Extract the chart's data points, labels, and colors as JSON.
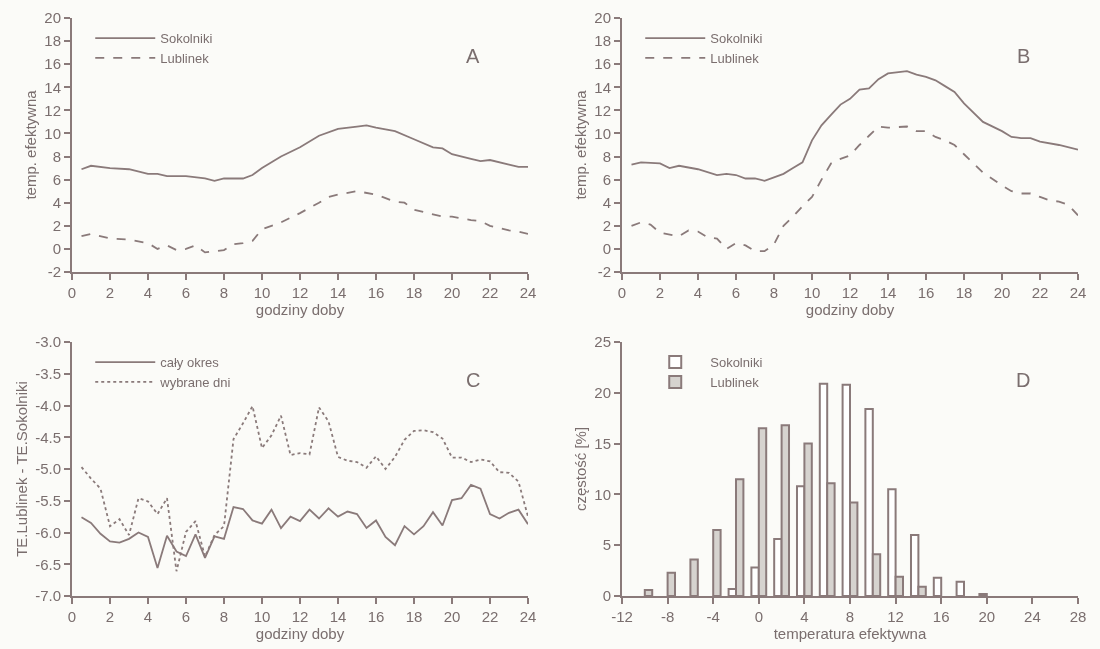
{
  "chart_data": [
    {
      "type": "line",
      "xlabel": "godziny doby",
      "ylabel": "temp. efektywna",
      "annotations": [
        "A"
      ],
      "legend": "top left",
      "xlim": [
        0,
        24
      ],
      "xticks": [
        0,
        2,
        4,
        6,
        8,
        10,
        12,
        14,
        16,
        18,
        20,
        22,
        24
      ],
      "ylim": [
        -2,
        20
      ],
      "yticks": [
        -2,
        0,
        2,
        4,
        6,
        8,
        10,
        12,
        14,
        16,
        18,
        20
      ],
      "series": [
        {
          "name": "Sokolniki",
          "color": "#8a7a7a",
          "line_style": "solid",
          "x": [
            0.5,
            1,
            2,
            3,
            4,
            4.5,
            5,
            6,
            7,
            7.5,
            8,
            9,
            9.5,
            10,
            11,
            12,
            13,
            14,
            15,
            15.5,
            16,
            17,
            18,
            19,
            19.5,
            20,
            21,
            21.5,
            22,
            23,
            23.5,
            24
          ],
          "values": [
            6.9,
            7.2,
            7.0,
            6.9,
            6.5,
            6.5,
            6.3,
            6.3,
            6.1,
            5.9,
            6.1,
            6.1,
            6.4,
            7.0,
            8.0,
            8.8,
            9.8,
            10.4,
            10.6,
            10.7,
            10.5,
            10.2,
            9.5,
            8.8,
            8.7,
            8.2,
            7.8,
            7.6,
            7.7,
            7.3,
            7.1,
            7.1
          ]
        },
        {
          "name": "Lublinek",
          "color": "#8a7a7a",
          "line_style": "dashed",
          "x": [
            0.5,
            1,
            2,
            3,
            4,
            4.5,
            5,
            5.5,
            6,
            6.5,
            7,
            8,
            8.5,
            9,
            9.5,
            10,
            11,
            12,
            13,
            13.5,
            14,
            15,
            16,
            17,
            17.5,
            18,
            19,
            19.5,
            20,
            21,
            21.5,
            22,
            23,
            23.5,
            24
          ],
          "values": [
            1.1,
            1.3,
            0.9,
            0.8,
            0.5,
            0.0,
            0.3,
            -0.1,
            0.0,
            0.3,
            -0.3,
            -0.1,
            0.4,
            0.5,
            0.7,
            1.7,
            2.3,
            3.1,
            4.0,
            4.5,
            4.7,
            5.0,
            4.7,
            4.1,
            4.0,
            3.4,
            3.0,
            2.8,
            2.8,
            2.5,
            2.4,
            2.0,
            1.6,
            1.5,
            1.3
          ]
        }
      ]
    },
    {
      "type": "line",
      "xlabel": "godziny doby",
      "ylabel": "temp. efektywna",
      "annotations": [
        "B"
      ],
      "legend": "top left",
      "xlim": [
        0,
        24
      ],
      "xticks": [
        0,
        2,
        4,
        6,
        8,
        10,
        12,
        14,
        16,
        18,
        20,
        22,
        24
      ],
      "ylim": [
        -2,
        20
      ],
      "yticks": [
        -2,
        0,
        2,
        4,
        6,
        8,
        10,
        12,
        14,
        16,
        18,
        20
      ],
      "series": [
        {
          "name": "Sokolniki",
          "color": "#8a7a7a",
          "line_style": "solid",
          "x": [
            0.5,
            1,
            2,
            2.5,
            3,
            4,
            5,
            5.5,
            6,
            6.5,
            7,
            7.5,
            8,
            8.5,
            9,
            9.5,
            10,
            10.5,
            11,
            11.5,
            12,
            12.5,
            13,
            13.5,
            14,
            15,
            15.5,
            16,
            16.5,
            17,
            17.5,
            18,
            19,
            20,
            20.5,
            21,
            21.5,
            22,
            23,
            24
          ],
          "values": [
            7.3,
            7.5,
            7.4,
            7.0,
            7.2,
            6.9,
            6.4,
            6.5,
            6.4,
            6.1,
            6.1,
            5.9,
            6.2,
            6.5,
            7.0,
            7.5,
            9.4,
            10.7,
            11.6,
            12.5,
            13.0,
            13.8,
            13.9,
            14.7,
            15.2,
            15.4,
            15.1,
            14.9,
            14.6,
            14.1,
            13.6,
            12.6,
            11.0,
            10.2,
            9.7,
            9.6,
            9.6,
            9.3,
            9.0,
            8.6
          ]
        },
        {
          "name": "Lublinek",
          "color": "#8a7a7a",
          "line_style": "dashed",
          "x": [
            0.5,
            1,
            1.5,
            2,
            3,
            3.5,
            4,
            4.5,
            5,
            5.5,
            6,
            6.5,
            7,
            7.5,
            8,
            8.5,
            9,
            9.5,
            10,
            10.5,
            11,
            11.5,
            12,
            12.5,
            13,
            13.5,
            14,
            15,
            15.5,
            16,
            16.5,
            17,
            17.5,
            18,
            19,
            20,
            20.5,
            21,
            21.5,
            22,
            22.5,
            23,
            23.5,
            24
          ],
          "values": [
            2.0,
            2.3,
            2.1,
            1.4,
            1.1,
            1.6,
            1.5,
            1.0,
            0.9,
            0.0,
            0.5,
            0.3,
            -0.2,
            -0.2,
            0.4,
            2.0,
            2.8,
            3.7,
            4.5,
            6.0,
            7.4,
            7.8,
            8.1,
            9.0,
            9.8,
            10.6,
            10.5,
            10.6,
            10.2,
            10.2,
            9.7,
            9.4,
            9.0,
            8.2,
            6.6,
            5.5,
            5.0,
            4.8,
            4.8,
            4.5,
            4.2,
            4.1,
            3.8,
            2.9
          ]
        }
      ]
    },
    {
      "type": "line",
      "xlabel": "godziny doby",
      "ylabel": "TE.Lublinek - TE.Sokolniki",
      "annotations": [
        "C"
      ],
      "legend": "top left",
      "xlim": [
        0,
        24
      ],
      "xticks": [
        0,
        2,
        4,
        6,
        8,
        10,
        12,
        14,
        16,
        18,
        20,
        22,
        24
      ],
      "ylim": [
        -7,
        -3
      ],
      "yticks": [
        {
          "value": -7,
          "label": "-7.0"
        },
        -6.5,
        {
          "value": -6,
          "label": "-6.0"
        },
        -5.5,
        {
          "value": -5,
          "label": "-5.0"
        },
        -4.5,
        {
          "value": -4,
          "label": "-4.0"
        },
        -3.5,
        {
          "value": -3,
          "label": "-3.0"
        }
      ],
      "x": [
        0.5,
        1,
        1.5,
        2,
        2.5,
        3,
        3.5,
        4,
        4.5,
        5,
        5.5,
        6,
        6.5,
        7,
        7.5,
        8,
        8.5,
        9,
        9.5,
        10,
        10.5,
        11,
        11.5,
        12,
        12.5,
        13,
        13.5,
        14,
        14.5,
        15,
        15.5,
        16,
        16.5,
        17,
        17.5,
        18,
        18.5,
        19,
        19.5,
        20,
        20.5,
        21,
        21.5,
        22,
        22.5,
        23,
        23.5,
        24
      ],
      "series": [
        {
          "name": "cały okres",
          "color": "#8a7a7a",
          "line_style": "solid",
          "values": [
            -5.76,
            -5.85,
            -6.02,
            -6.14,
            -6.16,
            -6.1,
            -6.0,
            -6.07,
            -6.56,
            -6.05,
            -6.3,
            -6.37,
            -6.03,
            -6.4,
            -6.06,
            -6.1,
            -5.6,
            -5.63,
            -5.81,
            -5.86,
            -5.64,
            -5.93,
            -5.75,
            -5.82,
            -5.64,
            -5.78,
            -5.62,
            -5.75,
            -5.67,
            -5.71,
            -5.93,
            -5.81,
            -6.07,
            -6.2,
            -5.9,
            -6.03,
            -5.9,
            -5.68,
            -5.89,
            -5.49,
            -5.46,
            -5.25,
            -5.31,
            -5.71,
            -5.78,
            -5.69,
            -5.64,
            -5.87
          ]
        },
        {
          "name": "wybrane dni",
          "color": "#8a7a7a",
          "line_style": "dotted",
          "values": [
            -4.97,
            -5.15,
            -5.31,
            -5.9,
            -5.79,
            -6.04,
            -5.46,
            -5.51,
            -5.71,
            -5.46,
            -6.61,
            -5.99,
            -5.82,
            -6.38,
            -6.04,
            -5.9,
            -4.53,
            -4.28,
            -4.01,
            -4.67,
            -4.47,
            -4.16,
            -4.78,
            -4.75,
            -4.77,
            -4.03,
            -4.25,
            -4.81,
            -4.87,
            -4.89,
            -4.98,
            -4.8,
            -5.0,
            -4.81,
            -4.54,
            -4.4,
            -4.39,
            -4.42,
            -4.52,
            -4.82,
            -4.82,
            -4.89,
            -4.85,
            -4.88,
            -5.05,
            -5.06,
            -5.2,
            -5.75
          ]
        }
      ]
    },
    {
      "type": "bar",
      "xlabel": "temperatura efektywna",
      "ylabel": "częstość [%]",
      "annotations": [
        "D"
      ],
      "legend": "top left",
      "xlim": [
        -12,
        28
      ],
      "xticks": [
        -12,
        -8,
        -4,
        0,
        4,
        8,
        12,
        16,
        20,
        24,
        28
      ],
      "ylim": [
        0,
        25
      ],
      "yticks": [
        0,
        5,
        10,
        15,
        20,
        25
      ],
      "x": [
        -10,
        -8,
        -6,
        -4,
        -2,
        0,
        2,
        4,
        6,
        8,
        10,
        12,
        14,
        16,
        18,
        20
      ],
      "series": [
        {
          "name": "Sokolniki",
          "color": "#ffffff",
          "values": [
            null,
            null,
            null,
            null,
            0.7,
            2.8,
            5.6,
            10.8,
            20.9,
            20.8,
            18.4,
            10.5,
            6.0,
            1.8,
            1.4,
            0.2
          ]
        },
        {
          "name": "Lublinek",
          "color": "#d6d3cf",
          "values": [
            0.6,
            2.3,
            3.6,
            6.5,
            11.5,
            16.5,
            16.8,
            15.0,
            11.1,
            9.2,
            4.1,
            1.9,
            0.9,
            null,
            null,
            null
          ]
        }
      ]
    }
  ]
}
